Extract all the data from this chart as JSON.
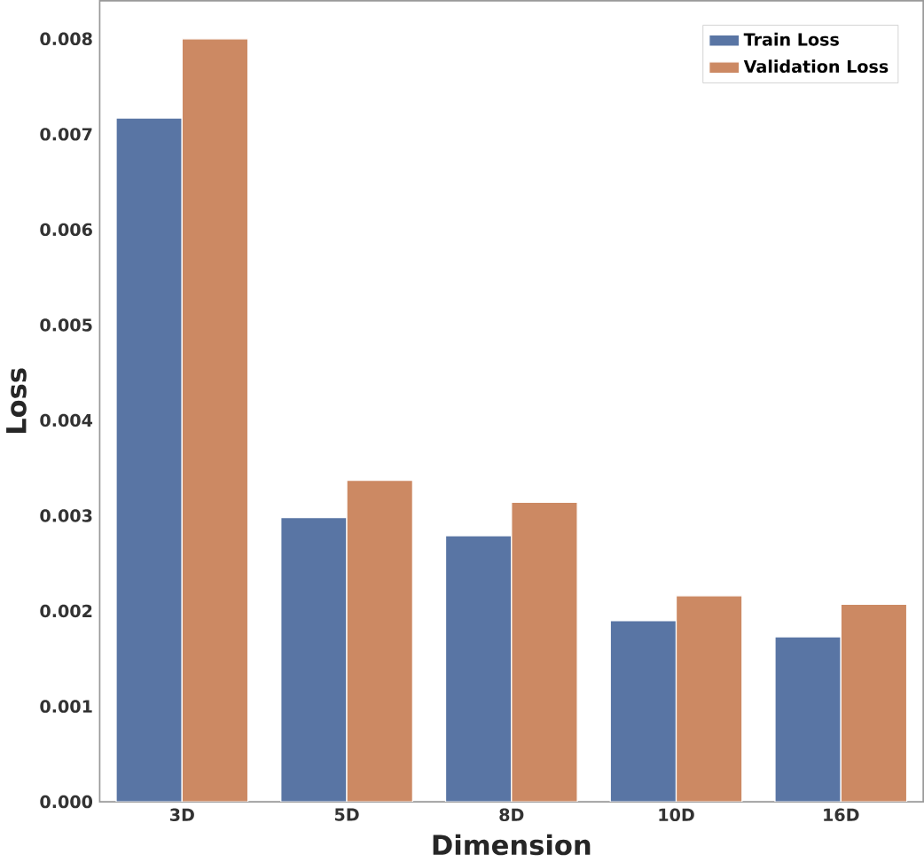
{
  "chart_data": {
    "type": "bar",
    "xlabel": "Dimension",
    "ylabel": "Loss",
    "categories": [
      "3D",
      "5D",
      "8D",
      "10D",
      "16D"
    ],
    "series": [
      {
        "name": "Train Loss",
        "color": "#5975a4",
        "values": [
          0.00717,
          0.00298,
          0.00279,
          0.0019,
          0.00173
        ]
      },
      {
        "name": "Validation Loss",
        "color": "#cc8963",
        "values": [
          0.008,
          0.00337,
          0.00314,
          0.00216,
          0.00207
        ]
      }
    ],
    "ylim": [
      0,
      0.0084
    ],
    "yticks": [
      {
        "value": 0,
        "label": "0.000"
      },
      0.001,
      0.002,
      0.003,
      0.004,
      0.005,
      0.006,
      0.007,
      0.008
    ],
    "grid": false,
    "legend": "top right"
  }
}
